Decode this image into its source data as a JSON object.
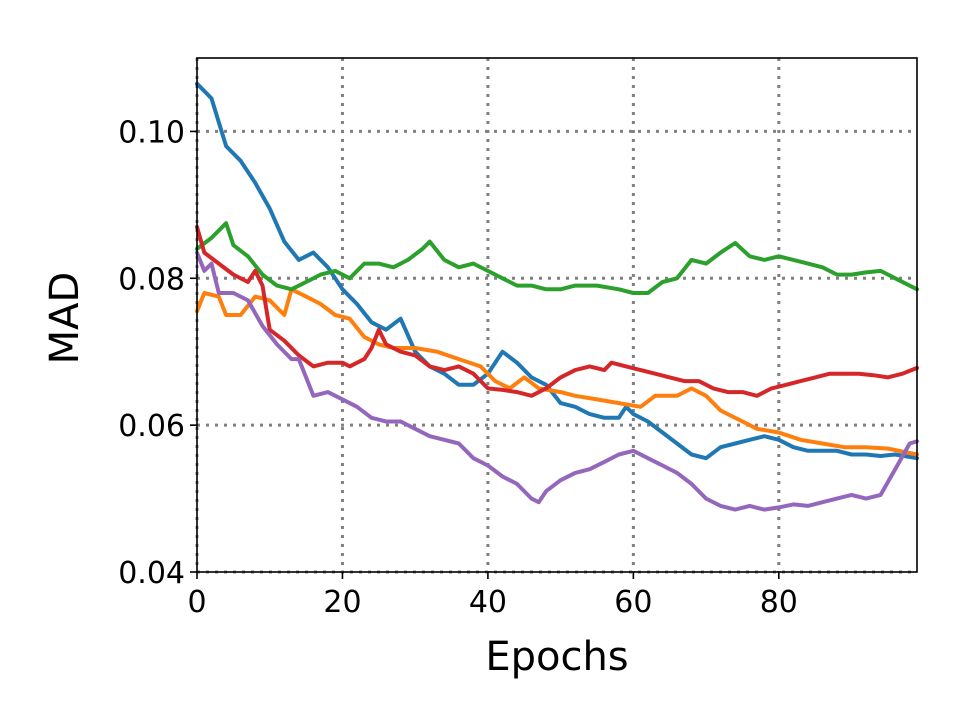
{
  "chart_data": {
    "type": "line",
    "xlabel": "Epochs",
    "ylabel": "MAD",
    "xlim": [
      0,
      99
    ],
    "ylim": [
      0.04,
      0.11
    ],
    "x_ticks": [
      0,
      20,
      40,
      60,
      80
    ],
    "x_tick_labels": [
      "0",
      "20",
      "40",
      "60",
      "80"
    ],
    "y_ticks": [
      0.04,
      0.06,
      0.08,
      0.1
    ],
    "y_tick_labels": [
      "0.04",
      "0.06",
      "0.08",
      "0.10"
    ],
    "grid": true,
    "series": [
      {
        "color": "#1f77b4",
        "points": [
          [
            0,
            0.1065
          ],
          [
            2,
            0.1045
          ],
          [
            4,
            0.098
          ],
          [
            6,
            0.096
          ],
          [
            8,
            0.093
          ],
          [
            10,
            0.0895
          ],
          [
            12,
            0.085
          ],
          [
            14,
            0.0825
          ],
          [
            16,
            0.0835
          ],
          [
            18,
            0.0815
          ],
          [
            20,
            0.0785
          ],
          [
            22,
            0.0765
          ],
          [
            24,
            0.074
          ],
          [
            26,
            0.073
          ],
          [
            28,
            0.0745
          ],
          [
            30,
            0.07
          ],
          [
            32,
            0.068
          ],
          [
            34,
            0.067
          ],
          [
            36,
            0.0655
          ],
          [
            38,
            0.0655
          ],
          [
            40,
            0.067
          ],
          [
            42,
            0.07
          ],
          [
            44,
            0.0685
          ],
          [
            46,
            0.0665
          ],
          [
            48,
            0.0655
          ],
          [
            50,
            0.063
          ],
          [
            52,
            0.0625
          ],
          [
            54,
            0.0615
          ],
          [
            56,
            0.061
          ],
          [
            58,
            0.061
          ],
          [
            59,
            0.0625
          ],
          [
            60,
            0.0615
          ],
          [
            62,
            0.0605
          ],
          [
            64,
            0.059
          ],
          [
            66,
            0.0575
          ],
          [
            68,
            0.056
          ],
          [
            70,
            0.0555
          ],
          [
            72,
            0.057
          ],
          [
            74,
            0.0575
          ],
          [
            76,
            0.058
          ],
          [
            78,
            0.0585
          ],
          [
            80,
            0.058
          ],
          [
            82,
            0.057
          ],
          [
            84,
            0.0565
          ],
          [
            86,
            0.0565
          ],
          [
            88,
            0.0565
          ],
          [
            90,
            0.056
          ],
          [
            92,
            0.056
          ],
          [
            94,
            0.0558
          ],
          [
            96,
            0.056
          ],
          [
            99,
            0.0555
          ]
        ]
      },
      {
        "color": "#ff7f0e",
        "points": [
          [
            0,
            0.0755
          ],
          [
            1,
            0.078
          ],
          [
            3,
            0.0775
          ],
          [
            4,
            0.075
          ],
          [
            6,
            0.075
          ],
          [
            8,
            0.0775
          ],
          [
            10,
            0.077
          ],
          [
            12,
            0.075
          ],
          [
            13,
            0.0785
          ],
          [
            15,
            0.0775
          ],
          [
            17,
            0.0765
          ],
          [
            19,
            0.075
          ],
          [
            21,
            0.0745
          ],
          [
            23,
            0.072
          ],
          [
            25,
            0.071
          ],
          [
            27,
            0.0705
          ],
          [
            30,
            0.0705
          ],
          [
            33,
            0.07
          ],
          [
            36,
            0.069
          ],
          [
            39,
            0.068
          ],
          [
            41,
            0.066
          ],
          [
            43,
            0.065
          ],
          [
            45,
            0.0665
          ],
          [
            47,
            0.065
          ],
          [
            50,
            0.0645
          ],
          [
            52,
            0.064
          ],
          [
            55,
            0.0635
          ],
          [
            58,
            0.063
          ],
          [
            61,
            0.0625
          ],
          [
            63,
            0.064
          ],
          [
            66,
            0.064
          ],
          [
            68,
            0.065
          ],
          [
            70,
            0.064
          ],
          [
            72,
            0.062
          ],
          [
            75,
            0.0605
          ],
          [
            77,
            0.0595
          ],
          [
            80,
            0.059
          ],
          [
            83,
            0.058
          ],
          [
            86,
            0.0575
          ],
          [
            89,
            0.057
          ],
          [
            92,
            0.057
          ],
          [
            95,
            0.0568
          ],
          [
            99,
            0.056
          ]
        ]
      },
      {
        "color": "#2ca02c",
        "points": [
          [
            0,
            0.084
          ],
          [
            2,
            0.0855
          ],
          [
            4,
            0.0875
          ],
          [
            5,
            0.0845
          ],
          [
            7,
            0.083
          ],
          [
            9,
            0.0805
          ],
          [
            11,
            0.079
          ],
          [
            13,
            0.0785
          ],
          [
            15,
            0.0795
          ],
          [
            17,
            0.0805
          ],
          [
            19,
            0.081
          ],
          [
            21,
            0.08
          ],
          [
            23,
            0.082
          ],
          [
            25,
            0.082
          ],
          [
            27,
            0.0815
          ],
          [
            29,
            0.0825
          ],
          [
            31,
            0.084
          ],
          [
            32,
            0.085
          ],
          [
            34,
            0.0825
          ],
          [
            36,
            0.0815
          ],
          [
            38,
            0.082
          ],
          [
            40,
            0.081
          ],
          [
            42,
            0.08
          ],
          [
            44,
            0.079
          ],
          [
            46,
            0.079
          ],
          [
            48,
            0.0785
          ],
          [
            50,
            0.0785
          ],
          [
            52,
            0.079
          ],
          [
            55,
            0.079
          ],
          [
            58,
            0.0785
          ],
          [
            60,
            0.078
          ],
          [
            62,
            0.078
          ],
          [
            64,
            0.0795
          ],
          [
            66,
            0.08
          ],
          [
            68,
            0.0825
          ],
          [
            70,
            0.082
          ],
          [
            72,
            0.0835
          ],
          [
            74,
            0.0848
          ],
          [
            76,
            0.083
          ],
          [
            78,
            0.0825
          ],
          [
            80,
            0.083
          ],
          [
            82,
            0.0825
          ],
          [
            84,
            0.082
          ],
          [
            86,
            0.0815
          ],
          [
            88,
            0.0805
          ],
          [
            90,
            0.0805
          ],
          [
            92,
            0.0808
          ],
          [
            94,
            0.081
          ],
          [
            96,
            0.08
          ],
          [
            99,
            0.0785
          ]
        ]
      },
      {
        "color": "#d62728",
        "points": [
          [
            0,
            0.087
          ],
          [
            1,
            0.0835
          ],
          [
            3,
            0.082
          ],
          [
            5,
            0.0805
          ],
          [
            7,
            0.0795
          ],
          [
            8,
            0.081
          ],
          [
            9,
            0.079
          ],
          [
            10,
            0.073
          ],
          [
            12,
            0.0715
          ],
          [
            14,
            0.0695
          ],
          [
            16,
            0.068
          ],
          [
            18,
            0.0685
          ],
          [
            20,
            0.0685
          ],
          [
            21,
            0.068
          ],
          [
            23,
            0.069
          ],
          [
            24,
            0.0705
          ],
          [
            25,
            0.073
          ],
          [
            26,
            0.071
          ],
          [
            28,
            0.07
          ],
          [
            30,
            0.0695
          ],
          [
            32,
            0.068
          ],
          [
            34,
            0.0675
          ],
          [
            36,
            0.068
          ],
          [
            38,
            0.067
          ],
          [
            40,
            0.065
          ],
          [
            42,
            0.0648
          ],
          [
            44,
            0.0645
          ],
          [
            46,
            0.064
          ],
          [
            48,
            0.065
          ],
          [
            50,
            0.0665
          ],
          [
            52,
            0.0675
          ],
          [
            54,
            0.068
          ],
          [
            56,
            0.0675
          ],
          [
            57,
            0.0685
          ],
          [
            59,
            0.068
          ],
          [
            61,
            0.0675
          ],
          [
            63,
            0.067
          ],
          [
            65,
            0.0665
          ],
          [
            67,
            0.066
          ],
          [
            69,
            0.066
          ],
          [
            71,
            0.065
          ],
          [
            73,
            0.0645
          ],
          [
            75,
            0.0645
          ],
          [
            77,
            0.064
          ],
          [
            79,
            0.065
          ],
          [
            81,
            0.0655
          ],
          [
            83,
            0.066
          ],
          [
            85,
            0.0665
          ],
          [
            87,
            0.067
          ],
          [
            89,
            0.067
          ],
          [
            91,
            0.067
          ],
          [
            93,
            0.0668
          ],
          [
            95,
            0.0665
          ],
          [
            97,
            0.067
          ],
          [
            99,
            0.0678
          ]
        ]
      },
      {
        "color": "#9467bd",
        "points": [
          [
            0,
            0.0835
          ],
          [
            1,
            0.081
          ],
          [
            2,
            0.082
          ],
          [
            3,
            0.078
          ],
          [
            5,
            0.078
          ],
          [
            7,
            0.077
          ],
          [
            9,
            0.0735
          ],
          [
            11,
            0.071
          ],
          [
            13,
            0.069
          ],
          [
            14,
            0.069
          ],
          [
            15,
            0.0665
          ],
          [
            16,
            0.064
          ],
          [
            18,
            0.0645
          ],
          [
            20,
            0.0635
          ],
          [
            22,
            0.0625
          ],
          [
            24,
            0.061
          ],
          [
            26,
            0.0605
          ],
          [
            28,
            0.0605
          ],
          [
            30,
            0.0595
          ],
          [
            32,
            0.0585
          ],
          [
            34,
            0.058
          ],
          [
            36,
            0.0575
          ],
          [
            38,
            0.0555
          ],
          [
            40,
            0.0545
          ],
          [
            42,
            0.053
          ],
          [
            44,
            0.052
          ],
          [
            46,
            0.05
          ],
          [
            47,
            0.0495
          ],
          [
            48,
            0.051
          ],
          [
            50,
            0.0525
          ],
          [
            52,
            0.0535
          ],
          [
            54,
            0.054
          ],
          [
            56,
            0.055
          ],
          [
            58,
            0.056
          ],
          [
            60,
            0.0565
          ],
          [
            62,
            0.0555
          ],
          [
            64,
            0.0545
          ],
          [
            66,
            0.0535
          ],
          [
            68,
            0.052
          ],
          [
            70,
            0.05
          ],
          [
            72,
            0.049
          ],
          [
            74,
            0.0485
          ],
          [
            76,
            0.049
          ],
          [
            78,
            0.0485
          ],
          [
            80,
            0.0488
          ],
          [
            82,
            0.0492
          ],
          [
            84,
            0.049
          ],
          [
            86,
            0.0495
          ],
          [
            88,
            0.05
          ],
          [
            90,
            0.0505
          ],
          [
            92,
            0.05
          ],
          [
            94,
            0.0505
          ],
          [
            96,
            0.054
          ],
          [
            98,
            0.0575
          ],
          [
            99,
            0.0578
          ]
        ]
      }
    ]
  }
}
